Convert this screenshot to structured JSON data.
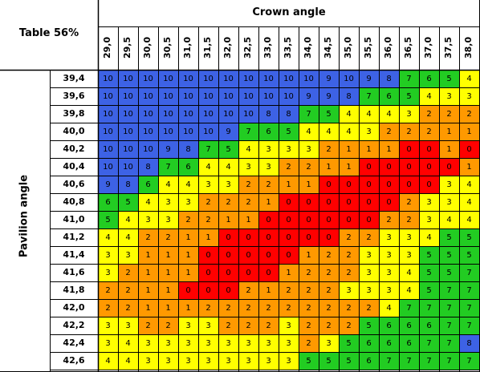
{
  "chart_data": {
    "type": "heatmap",
    "corner_label": "Table 56%",
    "xlabel": "Crown angle",
    "ylabel": "Pavilion angle",
    "x": [
      "29,0",
      "29,5",
      "30,0",
      "30,5",
      "31,0",
      "31,5",
      "32,0",
      "32,5",
      "33,0",
      "33,5",
      "34,0",
      "34,5",
      "35,0",
      "35,5",
      "36,0",
      "36,5",
      "37,0",
      "37,5",
      "38,0"
    ],
    "y": [
      "39,4",
      "39,6",
      "39,8",
      "40,0",
      "40,2",
      "40,4",
      "40,6",
      "40,8",
      "41,0",
      "41,2",
      "41,4",
      "41,6",
      "41,8",
      "42,0",
      "42,2",
      "42,4",
      "42,6"
    ],
    "values": [
      [
        10,
        10,
        10,
        10,
        10,
        10,
        10,
        10,
        10,
        10,
        10,
        9,
        10,
        9,
        8,
        7,
        6,
        5,
        4
      ],
      [
        10,
        10,
        10,
        10,
        10,
        10,
        10,
        10,
        10,
        10,
        9,
        9,
        8,
        7,
        6,
        5,
        4,
        3,
        3
      ],
      [
        10,
        10,
        10,
        10,
        10,
        10,
        10,
        10,
        8,
        8,
        7,
        5,
        4,
        4,
        4,
        3,
        2,
        2,
        2
      ],
      [
        10,
        10,
        10,
        10,
        10,
        10,
        9,
        7,
        6,
        5,
        4,
        4,
        4,
        3,
        2,
        2,
        2,
        1,
        1
      ],
      [
        10,
        10,
        10,
        9,
        8,
        7,
        5,
        4,
        3,
        3,
        3,
        2,
        1,
        1,
        1,
        0,
        0,
        1,
        0
      ],
      [
        10,
        10,
        8,
        7,
        6,
        4,
        4,
        3,
        3,
        2,
        2,
        1,
        1,
        0,
        0,
        0,
        0,
        0,
        1
      ],
      [
        9,
        8,
        6,
        4,
        4,
        3,
        3,
        2,
        2,
        1,
        1,
        0,
        0,
        0,
        0,
        0,
        0,
        3,
        4
      ],
      [
        6,
        5,
        4,
        3,
        3,
        2,
        2,
        2,
        1,
        0,
        0,
        0,
        0,
        0,
        0,
        2,
        3,
        3,
        4
      ],
      [
        5,
        4,
        3,
        3,
        2,
        2,
        1,
        1,
        0,
        0,
        0,
        0,
        0,
        0,
        2,
        2,
        3,
        4,
        4
      ],
      [
        4,
        4,
        2,
        2,
        1,
        1,
        0,
        0,
        0,
        0,
        0,
        0,
        2,
        2,
        3,
        3,
        4,
        5,
        5
      ],
      [
        3,
        3,
        1,
        1,
        1,
        0,
        0,
        0,
        0,
        0,
        1,
        2,
        2,
        3,
        3,
        3,
        5,
        5,
        5
      ],
      [
        3,
        2,
        1,
        1,
        1,
        0,
        0,
        0,
        0,
        1,
        2,
        2,
        2,
        3,
        3,
        4,
        5,
        5,
        7
      ],
      [
        2,
        2,
        1,
        1,
        0,
        0,
        0,
        2,
        1,
        2,
        2,
        2,
        3,
        3,
        3,
        4,
        5,
        7,
        7
      ],
      [
        2,
        2,
        1,
        1,
        1,
        2,
        2,
        2,
        2,
        2,
        2,
        2,
        2,
        2,
        4,
        7,
        7,
        7,
        7
      ],
      [
        3,
        3,
        2,
        2,
        3,
        3,
        2,
        2,
        2,
        3,
        2,
        2,
        2,
        5,
        6,
        6,
        6,
        7,
        7
      ],
      [
        3,
        4,
        3,
        3,
        3,
        3,
        3,
        3,
        3,
        3,
        2,
        3,
        5,
        6,
        6,
        6,
        7,
        7,
        8
      ],
      [
        4,
        4,
        3,
        3,
        3,
        3,
        3,
        3,
        3,
        3,
        5,
        5,
        5,
        6,
        7,
        7,
        7,
        7,
        7
      ]
    ],
    "colors": {
      "blue": "#3d62e5",
      "green": "#22cc22",
      "yellow": "#ffff00",
      "orange": "#ff9900",
      "red": "#ff0000",
      "gridline": "#000000",
      "header_border": "#000000"
    }
  }
}
